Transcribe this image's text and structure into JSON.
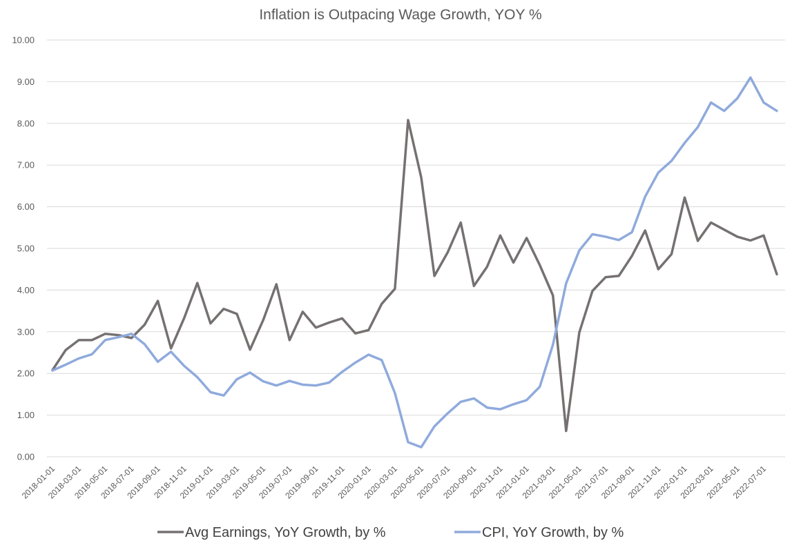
{
  "chart_data": {
    "type": "line",
    "title": "Inflation is Outpacing Wage Growth, YOY %",
    "xlabel": "",
    "ylabel": "",
    "ylim": [
      0,
      10
    ],
    "yticks": [
      "0.00",
      "1.00",
      "2.00",
      "3.00",
      "4.00",
      "5.00",
      "6.00",
      "7.00",
      "8.00",
      "9.00",
      "10.00"
    ],
    "grid": true,
    "legend_position": "bottom",
    "x": [
      "2018-01-01",
      "2018-02-01",
      "2018-03-01",
      "2018-04-01",
      "2018-05-01",
      "2018-06-01",
      "2018-07-01",
      "2018-08-01",
      "2018-09-01",
      "2018-10-01",
      "2018-11-01",
      "2018-12-01",
      "2019-01-01",
      "2019-02-01",
      "2019-03-01",
      "2019-04-01",
      "2019-05-01",
      "2019-06-01",
      "2019-07-01",
      "2019-08-01",
      "2019-09-01",
      "2019-10-01",
      "2019-11-01",
      "2019-12-01",
      "2020-01-01",
      "2020-02-01",
      "2020-03-01",
      "2020-04-01",
      "2020-05-01",
      "2020-06-01",
      "2020-07-01",
      "2020-08-01",
      "2020-09-01",
      "2020-10-01",
      "2020-11-01",
      "2020-12-01",
      "2021-01-01",
      "2021-02-01",
      "2021-03-01",
      "2021-04-01",
      "2021-05-01",
      "2021-06-01",
      "2021-07-01",
      "2021-08-01",
      "2021-09-01",
      "2021-10-01",
      "2021-11-01",
      "2021-12-01",
      "2022-01-01",
      "2022-02-01",
      "2022-03-01",
      "2022-04-01",
      "2022-05-01",
      "2022-06-01",
      "2022-07-01",
      "2022-08-01"
    ],
    "x_tick_labels": [
      "2018-01-01",
      "2018-03-01",
      "2018-05-01",
      "2018-07-01",
      "2018-09-01",
      "2018-11-01",
      "2019-01-01",
      "2019-03-01",
      "2019-05-01",
      "2019-07-01",
      "2019-09-01",
      "2019-11-01",
      "2020-01-01",
      "2020-03-01",
      "2020-05-01",
      "2020-07-01",
      "2020-09-01",
      "2020-11-01",
      "2021-01-01",
      "2021-03-01",
      "2021-05-01",
      "2021-07-01",
      "2021-09-01",
      "2021-11-01",
      "2022-01-01",
      "2022-03-01",
      "2022-05-01",
      "2022-07-01"
    ],
    "series": [
      {
        "name": "Avg Earnings, YoY Growth, by %",
        "color": "#767171",
        "values": [
          2.08,
          2.56,
          2.8,
          2.8,
          2.95,
          2.92,
          2.85,
          3.17,
          3.74,
          2.6,
          3.33,
          4.17,
          3.2,
          3.55,
          3.43,
          2.57,
          3.28,
          4.14,
          2.8,
          3.48,
          3.1,
          3.22,
          3.32,
          2.96,
          3.04,
          3.67,
          4.03,
          8.08,
          6.7,
          4.34,
          4.9,
          5.62,
          4.1,
          4.56,
          5.31,
          4.66,
          5.25,
          4.6,
          3.87,
          0.62,
          2.98,
          3.98,
          4.31,
          4.34,
          4.82,
          5.43,
          4.5,
          4.86,
          6.22,
          5.18,
          5.62,
          5.45,
          5.28,
          5.19,
          5.31,
          4.38
        ]
      },
      {
        "name": "CPI, YoY Growth, by %",
        "color": "#8faadc",
        "values": [
          2.07,
          2.21,
          2.36,
          2.46,
          2.8,
          2.87,
          2.95,
          2.7,
          2.28,
          2.52,
          2.18,
          1.91,
          1.55,
          1.47,
          1.86,
          2.02,
          1.81,
          1.71,
          1.82,
          1.73,
          1.71,
          1.78,
          2.04,
          2.26,
          2.45,
          2.32,
          1.53,
          0.35,
          0.23,
          0.73,
          1.04,
          1.32,
          1.4,
          1.18,
          1.14,
          1.26,
          1.36,
          1.68,
          2.69,
          4.16,
          4.95,
          5.34,
          5.28,
          5.2,
          5.39,
          6.24,
          6.82,
          7.1,
          7.53,
          7.91,
          8.5,
          8.3,
          8.6,
          9.1,
          8.5,
          8.3
        ]
      }
    ]
  }
}
